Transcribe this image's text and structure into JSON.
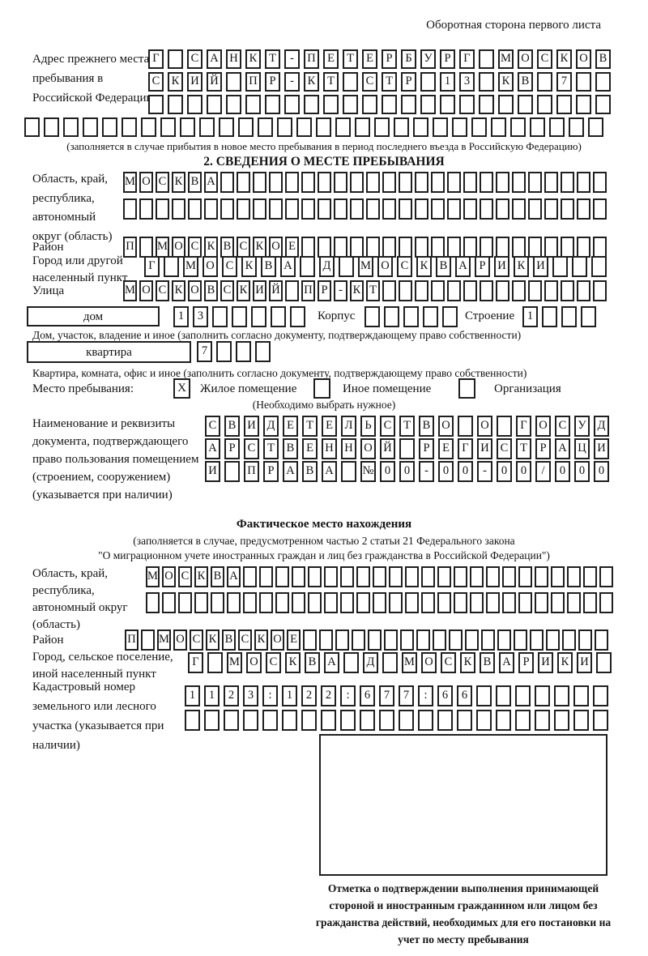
{
  "page": {
    "side_note": "Оборотная сторона первого листа"
  },
  "prev_address": {
    "label": "Адрес прежнего места пребывания в Российской Федерации",
    "row1": {
      "text": "Г САНКТ-ПЕТЕРБУРГ МОСКОВ",
      "len": 24
    },
    "row2": {
      "text": "СКИЙ ПР-КТ СТР 13 КВ 7",
      "len": 24
    },
    "row3": {
      "text": "",
      "len": 24
    },
    "row4": {
      "text": "",
      "len": 30
    },
    "note": "(заполняется в случае прибытия в новое место пребывания в период последнего въезда в Российскую Федерацию)"
  },
  "section2": {
    "title": "2. СВЕДЕНИЯ О МЕСТЕ ПРЕБЫВАНИЯ",
    "region": {
      "label": "Область, край, республика, автономный округ (область)",
      "row1": {
        "text": "МОСКВА",
        "len": 30
      },
      "row2": {
        "text": "",
        "len": 30
      }
    },
    "district": {
      "label": "Район",
      "row": {
        "text": "П МОСКВСКОЕ",
        "len": 30
      }
    },
    "city": {
      "label": "Город или другой населенный пункт",
      "row": {
        "text": "Г МОСКВА Д МОСКВАРИКИ",
        "len": 24
      }
    },
    "street": {
      "label": "Улица",
      "row": {
        "text": "МОСКОВСКИЙ ПР-КТ",
        "len": 30
      }
    },
    "house": {
      "type_label": "дом",
      "number": {
        "text": "13",
        "len": 7
      },
      "korpus_label": "Корпус",
      "korpus": {
        "text": "",
        "len": 5
      },
      "stroenie_label": "Строение",
      "stroenie": {
        "text": "1",
        "len": 4
      },
      "note": "Дом, участок, владение и иное (заполнить согласно документу, подтверждающему право собственности)"
    },
    "apartment": {
      "type_label": "квартира",
      "number": {
        "text": "7",
        "len": 4
      },
      "note": "Квартира, комната, офис и иное (заполнить согласно документу, подтверждающему право собственности)"
    },
    "stay_type": {
      "label": "Место пребывания:",
      "residential": {
        "label": "Жилое помещение",
        "checked": "X"
      },
      "other": {
        "label": "Иное помещение",
        "checked": ""
      },
      "organization": {
        "label": "Организация",
        "checked": ""
      },
      "note": "(Необходимо выбрать нужное)"
    },
    "document": {
      "label": "Наименование и реквизиты документа, подтверждающего право пользования помещением (строением, сооружением) (указывается при наличии)",
      "row1": {
        "text": "СВИДЕТЕЛЬСТВО О ГОСУД",
        "len": 21
      },
      "row2": {
        "text": "АРСТВЕННОЙ РЕГИСТРАЦИ",
        "len": 21
      },
      "row3": {
        "text": "И ПРАВА №00-00-00/000",
        "len": 21
      }
    }
  },
  "actual_location": {
    "title": "Фактическое место нахождения",
    "note1": "(заполняется в случае, предусмотренном частью 2 статьи 21 Федерального закона",
    "note2": "\"О миграционном учете иностранных граждан и лиц без гражданства в Российской Федерации\")",
    "region": {
      "label": "Область, край, республика, автономный округ (область)",
      "row1": {
        "text": "МОСКВА",
        "len": 29
      },
      "row2": {
        "text": "",
        "len": 29
      }
    },
    "district": {
      "label": "Район",
      "row": {
        "text": "П МОСКВСКОЕ",
        "len": 30
      }
    },
    "city": {
      "label": "Город, сельское поселение, иной населенный пункт",
      "row": {
        "text": "Г МОСКВА Д МОСКВАРИКИ",
        "len": 22
      }
    },
    "cadastral": {
      "label": "Кадастровый номер земельного или лесного участка (указывается при наличии)",
      "row1": {
        "text": "1123:122:677:66",
        "len": 22
      },
      "row2": {
        "text": "",
        "len": 22
      }
    }
  },
  "confirmation": {
    "caption": "Отметка о подтверждении выполнения принимающей стороной и иностранным гражданином или лицом без гражданства действий, необходимых для его постановки на учет по месту пребывания"
  }
}
